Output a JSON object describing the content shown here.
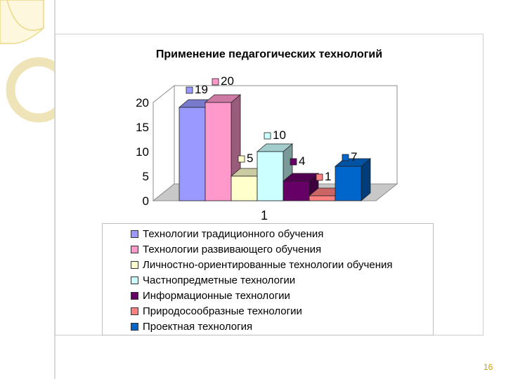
{
  "chart_data": {
    "type": "bar",
    "title": "Применение педагогических технологий",
    "categories": [
      "1"
    ],
    "ylim": [
      0,
      20
    ],
    "yticks": [
      0,
      5,
      10,
      15,
      20
    ],
    "grid": false,
    "legend_position": "bottom",
    "series": [
      {
        "name": "Технологии традиционного обучения",
        "values": [
          19
        ],
        "color": "#9999ff"
      },
      {
        "name": "Технологии развивающего обучения",
        "values": [
          20
        ],
        "color": "#ff99cc"
      },
      {
        "name": "Личностно-ориентированные технологии обучения",
        "values": [
          5
        ],
        "color": "#ffffcc"
      },
      {
        "name": "Частнопредметные технологии",
        "values": [
          10
        ],
        "color": "#ccffff"
      },
      {
        "name": "Информационные технологии",
        "values": [
          4
        ],
        "color": "#660066"
      },
      {
        "name": "Природосообразные технологии",
        "values": [
          1
        ],
        "color": "#ff8080"
      },
      {
        "name": "Проектная технология",
        "values": [
          7
        ],
        "color": "#0066cc"
      }
    ]
  },
  "page_number": "16"
}
